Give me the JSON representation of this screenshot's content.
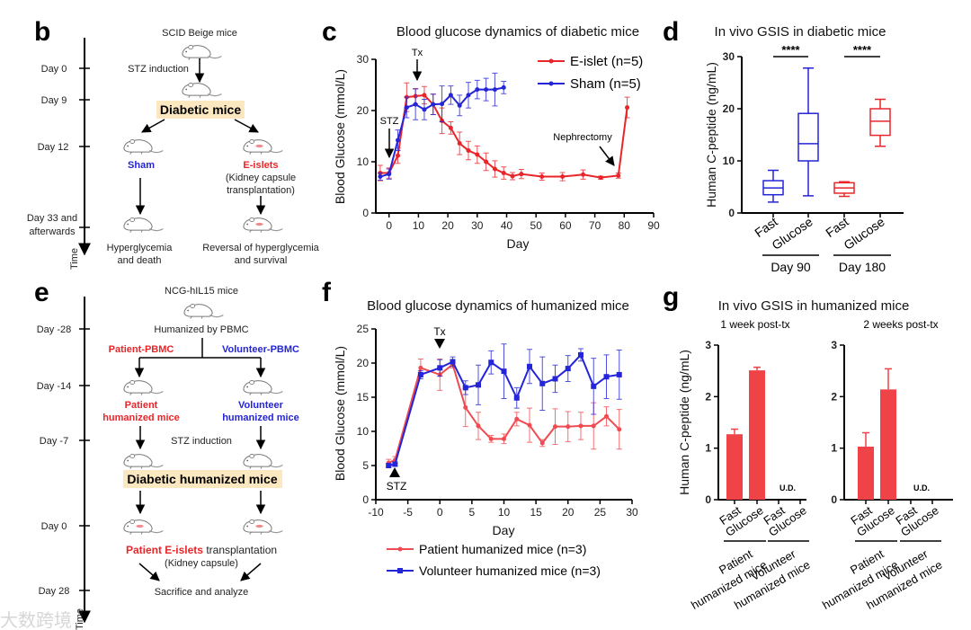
{
  "panels": {
    "b": {
      "letter": "b",
      "timeline": [
        "Day 0",
        "Day 9",
        "Day 12",
        "Day 33 and",
        "afterwards"
      ],
      "time_label": "Time",
      "start": "SCID Beige mice",
      "induction": "STZ induction",
      "diabetic": "Diabetic mice",
      "sham": "Sham",
      "eislets": "E-islets",
      "eislets_note1": "(Kidney capsule",
      "eislets_note2": "transplantation)",
      "sham_outcome1": "Hyperglycemia",
      "sham_outcome2": "and death",
      "eislets_outcome1": "Reversal of hyperglycemia",
      "eislets_outcome2": "and survival"
    },
    "e": {
      "letter": "e",
      "timeline": [
        "Day -28",
        "Day -14",
        "Day -7",
        "Day 0",
        "Day 28"
      ],
      "time_label": "Time",
      "start": "NCG-hIL15 mice",
      "humanized": "Humanized by PBMC",
      "patient_pbmc": "Patient-PBMC",
      "volunteer_pbmc": "Volunteer-PBMC",
      "patient_mice1": "Patient",
      "patient_mice2": "humanized mice",
      "volunteer_mice1": "Volunteer",
      "volunteer_mice2": "humanized mice",
      "induction": "STZ induction",
      "diabetic": "Diabetic humanized mice",
      "tx_red": "Patient E-islets",
      "tx_black": " transplantation",
      "tx_note": "(Kidney capsule)",
      "end": "Sacrifice and analyze"
    },
    "c_letter": "c",
    "d_letter": "d",
    "f_letter": "f",
    "g_letter": "g"
  },
  "colors": {
    "red": "#e8262a",
    "blue": "#2424d8",
    "pink": "#ef5a5f",
    "highlight": "#fbe7c0"
  },
  "watermark": "大数跨境",
  "chart_data": [
    {
      "id": "c",
      "type": "line",
      "title": "Blood glucose dynamics of diabetic mice",
      "xlabel": "Day",
      "ylabel": "Blood Glucose (mmol/L)",
      "xlim": [
        -4.5,
        90
      ],
      "ylim": [
        0,
        30
      ],
      "xticks": [
        0,
        10,
        20,
        30,
        40,
        50,
        60,
        70,
        80,
        90
      ],
      "yticks": [
        0,
        10,
        20,
        30
      ],
      "legend": "top-right",
      "annotations": [
        "STZ",
        "Tx",
        "Nephrectomy"
      ],
      "series": [
        {
          "name": "E-islet (n=5)",
          "color": "#e8262a",
          "marker": "circle",
          "x": [
            -3,
            0,
            3,
            6,
            9,
            12,
            15,
            18,
            21,
            24,
            27,
            30,
            33,
            36,
            39,
            42,
            45,
            52,
            59,
            66,
            72,
            78,
            81
          ],
          "y": [
            7.8,
            7.8,
            11.2,
            22.6,
            22.8,
            23.0,
            21.2,
            18,
            16.6,
            13.6,
            12.2,
            11.4,
            10,
            8.6,
            7.8,
            7.2,
            7.6,
            7.1,
            7.1,
            7.5,
            6.9,
            7.3,
            20.6
          ],
          "err": [
            1.5,
            1,
            1.5,
            2.8,
            1.5,
            1.7,
            2,
            2.5,
            1.2,
            2.2,
            1.8,
            1.7,
            1.7,
            1.6,
            1.2,
            0.7,
            0.9,
            0.7,
            0.8,
            0.9,
            0.3,
            0.5,
            2
          ]
        },
        {
          "name": "Sham (n=5)",
          "color": "#2424d8",
          "marker": "circle",
          "x": [
            -3,
            0,
            3,
            6,
            9,
            12,
            15,
            18,
            21,
            24,
            27,
            30,
            33,
            36,
            39
          ],
          "y": [
            7.1,
            7.6,
            14.2,
            20.6,
            21.2,
            20.2,
            21.2,
            21.3,
            23,
            21,
            23,
            24.1,
            24.1,
            24.1,
            24.5
          ],
          "err": [
            0.7,
            1,
            2,
            2,
            3,
            2,
            2,
            3.5,
            1.8,
            2,
            2.5,
            1.8,
            2.2,
            3.2,
            1.2
          ]
        }
      ]
    },
    {
      "id": "d",
      "type": "box",
      "title": "In vivo GSIS in diabetic mice",
      "ylabel": "Human C-peptide (ng/mL)",
      "ylim": [
        0,
        30
      ],
      "yticks": [
        0,
        10,
        20,
        30
      ],
      "categories": [
        "Fast",
        "Glucose",
        "Fast",
        "Glucose"
      ],
      "groups": [
        "Day 90",
        "Day 180"
      ],
      "significance": [
        "****",
        "****"
      ],
      "boxes": [
        {
          "color": "#2424d8",
          "min": 2.1,
          "q1": 3.5,
          "median": 4.8,
          "q3": 6.2,
          "max": 8.2
        },
        {
          "color": "#2424d8",
          "min": 3.3,
          "q1": 10,
          "median": 13.3,
          "q3": 19.1,
          "max": 27.8
        },
        {
          "color": "#e8262a",
          "min": 3.2,
          "q1": 3.8,
          "median": 4.8,
          "q3": 5.8,
          "max": 6.0
        },
        {
          "color": "#e8262a",
          "min": 12.8,
          "q1": 14.9,
          "median": 17.6,
          "q3": 20,
          "max": 21.8
        }
      ]
    },
    {
      "id": "f",
      "type": "line",
      "title": "Blood glucose dynamics of humanized mice",
      "xlabel": "Day",
      "ylabel": "Blood Glucose (mmol/L)",
      "xlim": [
        -10,
        30
      ],
      "ylim": [
        0,
        25
      ],
      "xticks": [
        -10,
        -5,
        0,
        5,
        10,
        15,
        20,
        25,
        30
      ],
      "yticks": [
        0,
        5,
        10,
        15,
        20,
        25
      ],
      "legend": "bottom",
      "annotations": [
        "STZ",
        "Tx"
      ],
      "series": [
        {
          "name": "Patient humanized mice (n=3)",
          "color": "#ef4b50",
          "marker": "circle",
          "x": [
            -8,
            -7,
            -3,
            0,
            2,
            4,
            6,
            8,
            10,
            12,
            14,
            16,
            18,
            20,
            22,
            24,
            26,
            28
          ],
          "y": [
            5.4,
            5.8,
            19.3,
            18.3,
            19.8,
            13.5,
            10.8,
            8.9,
            8.9,
            11.8,
            10.9,
            8.3,
            10.7,
            10.7,
            10.8,
            10.8,
            12.2,
            10.3
          ],
          "err": [
            0.5,
            0.5,
            1.3,
            2.3,
            0.5,
            2.8,
            2,
            0.5,
            0.7,
            1,
            2.5,
            0.5,
            2.6,
            2.2,
            2,
            3.4,
            1.4,
            2.9
          ]
        },
        {
          "name": "Volunteer humanized mice (n=3)",
          "color": "#2424d8",
          "marker": "square",
          "x": [
            -8,
            -7,
            -3,
            0,
            2,
            4,
            6,
            8,
            10,
            12,
            14,
            16,
            18,
            20,
            22,
            24,
            26,
            28
          ],
          "y": [
            5.0,
            5.2,
            18.3,
            19.3,
            20.2,
            16.4,
            16.8,
            20.1,
            18.8,
            14.9,
            19.5,
            17,
            17.7,
            19.2,
            21.2,
            16.6,
            18,
            18.3
          ],
          "err": [
            0.3,
            0.3,
            0.6,
            1.2,
            0.7,
            1,
            2.9,
            1.7,
            4,
            1.5,
            2.5,
            3.9,
            2,
            1.9,
            0.9,
            4.1,
            3.2,
            3.6
          ]
        }
      ]
    },
    {
      "id": "g",
      "type": "bar",
      "title": "In vivo GSIS in humanized mice",
      "ylabel": "Human C-peptide (ng/mL)",
      "ylim": [
        0,
        3
      ],
      "yticks": [
        0,
        1,
        2,
        3
      ],
      "categories": [
        "Fast",
        "Glucose",
        "Fast",
        "Glucose"
      ],
      "groups": [
        [
          "Patient",
          "humanized mice"
        ],
        [
          "Volunteer",
          "humanized mice"
        ]
      ],
      "color": "#f04348",
      "subplots": [
        {
          "subtitle": "1 week post-tx",
          "values": [
            1.27,
            2.51,
            null,
            null
          ],
          "err": [
            0.1,
            0.06,
            null,
            null
          ],
          "note": "U.D."
        },
        {
          "subtitle": "2 weeks post-tx",
          "values": [
            1.03,
            2.14,
            null,
            null
          ],
          "err": [
            0.27,
            0.4,
            null,
            null
          ],
          "note": "U.D."
        }
      ]
    }
  ]
}
